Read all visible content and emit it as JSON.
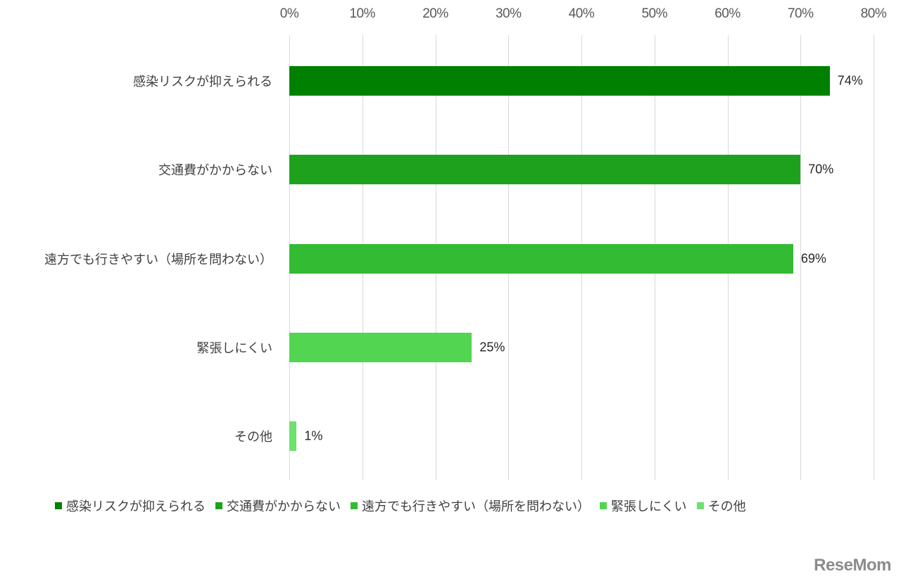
{
  "chart_data": {
    "type": "bar",
    "orientation": "horizontal",
    "title": "",
    "xlabel": "",
    "ylabel": "",
    "xlim": [
      0,
      80
    ],
    "x_ticks": [
      "0%",
      "10%",
      "20%",
      "30%",
      "40%",
      "50%",
      "60%",
      "70%",
      "80%"
    ],
    "grid": true,
    "legend_position": "bottom",
    "categories": [
      "感染リスクが抑えられる",
      "交通費がかからない",
      "遠方でも行きやすい（場所を問わない）",
      "緊張しにくい",
      "その他"
    ],
    "values": [
      74,
      70,
      69,
      25,
      1
    ],
    "value_labels": [
      "74%",
      "70%",
      "69%",
      "25%",
      "1%"
    ],
    "colors": [
      "#008000",
      "#1ea21e",
      "#33bb33",
      "#52d652",
      "#6ee06e"
    ]
  },
  "legend": {
    "items": [
      {
        "label": "感染リスクが抑えられる",
        "color": "#008000"
      },
      {
        "label": "交通費がかからない",
        "color": "#1ea21e"
      },
      {
        "label": "遠方でも行きやすい（場所を問わない）",
        "color": "#33bb33"
      },
      {
        "label": "緊張しにくい",
        "color": "#52d652"
      },
      {
        "label": "その他",
        "color": "#6ee06e"
      }
    ]
  },
  "watermark": {
    "text": "ReseMom"
  }
}
